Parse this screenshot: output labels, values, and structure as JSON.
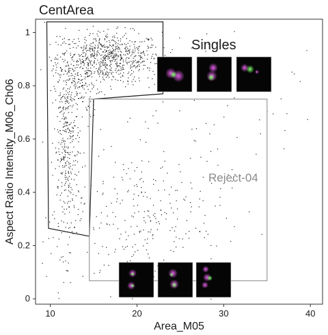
{
  "chart_data": {
    "type": "scatter",
    "title": "CentArea",
    "xlabel": "Area_M05",
    "ylabel": "Aspect Ratio Intensity_M06_Ch06",
    "xlim": [
      8.3,
      41.4
    ],
    "ylim": [
      -0.02,
      1.05
    ],
    "xticks": [
      10,
      20,
      30,
      40
    ],
    "yticks": [
      0,
      0.2,
      0.4,
      0.6,
      0.8,
      1
    ],
    "ytick_labels": [
      "0",
      "0.2",
      "0.4",
      "0.6",
      "0.8",
      "1"
    ],
    "point_color": "#1a1a1a",
    "gates": [
      {
        "name": "Singles",
        "line_color": "#222222",
        "polygon": [
          [
            9.6,
            1.04
          ],
          [
            23.0,
            1.04
          ],
          [
            23.0,
            0.77
          ],
          [
            15.0,
            0.75
          ],
          [
            14.5,
            0.235
          ],
          [
            9.8,
            0.265
          ]
        ],
        "thumbnails": 3
      },
      {
        "name": "Reject-04",
        "line_color": "#9a9a9a",
        "rect": [
          [
            14.5,
            0.068
          ],
          [
            35.0,
            0.75
          ]
        ],
        "thumbnails": 3
      }
    ],
    "clusters": [
      {
        "cx": 16.8,
        "cy": 0.905,
        "sx": 3.0,
        "sy": 0.048,
        "n": 700
      },
      {
        "cx": 13.2,
        "cy": 0.82,
        "sx": 1.2,
        "sy": 0.07,
        "n": 150
      },
      {
        "cx": 11.9,
        "cy": 0.56,
        "sx": 0.75,
        "sy": 0.19,
        "n": 380
      },
      {
        "cx": 21.0,
        "cy": 0.3,
        "sx": 4.5,
        "sy": 0.14,
        "n": 260
      },
      {
        "cx": 24.0,
        "cy": 0.55,
        "sx": 7.0,
        "sy": 0.25,
        "n": 70
      },
      {
        "cx": 30.0,
        "cy": 0.8,
        "sx": 8.0,
        "sy": 0.15,
        "n": 25
      }
    ]
  }
}
